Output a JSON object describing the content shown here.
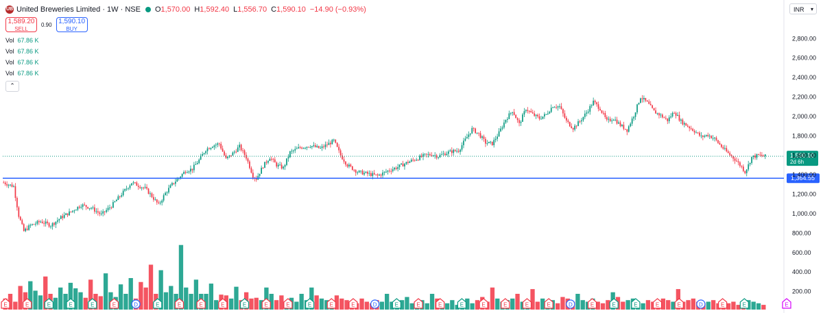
{
  "header": {
    "symbol": "United Breweries Limited · 1W · NSE",
    "logo": "UB",
    "ohlc": [
      {
        "key": "O",
        "value": "1,570.00"
      },
      {
        "key": "H",
        "value": "1,592.40"
      },
      {
        "key": "L",
        "value": "1,556.70"
      },
      {
        "key": "C",
        "value": "1,590.10"
      }
    ],
    "change": "−14.90 (−0.93%)"
  },
  "trade": {
    "sell_price": "1,589.20",
    "sell_label": "SELL",
    "spread": "0.90",
    "buy_price": "1,590.10",
    "buy_label": "BUY"
  },
  "volume_rows": [
    {
      "key": "Vol",
      "value": "67.86 K"
    },
    {
      "key": "Vol",
      "value": "67.86 K"
    },
    {
      "key": "Vol",
      "value": "67.86 K"
    },
    {
      "key": "Vol",
      "value": "67.86 K"
    }
  ],
  "collapse_icon": "chevron-up-icon",
  "currency": "INR",
  "colors": {
    "up": "#089981",
    "down": "#f23645",
    "line": "#2962ff",
    "last": "#089981"
  },
  "chart_data": {
    "type": "candlestick",
    "interval": "1W",
    "ylim": [
      120,
      2950
    ],
    "y_ticks": [
      "2,800.00",
      "2,600.00",
      "2,400.00",
      "2,200.00",
      "2,000.00",
      "1,800.00",
      "1,600.00",
      "1,400.00",
      "1,200.00",
      "1,000.00",
      "800.00",
      "600.00",
      "400.00",
      "200.00"
    ],
    "y_tick_values": [
      2800,
      2600,
      2400,
      2200,
      2000,
      1800,
      1600,
      1400,
      1200,
      1000,
      800,
      600,
      400,
      200
    ],
    "horizontal_line": {
      "value": 1364.55,
      "label": "1,364.55"
    },
    "last_price": {
      "value": 1590.1,
      "label": "1,590.10",
      "countdown": "2d 6h"
    },
    "close_path": [
      [
        0,
        1320
      ],
      [
        6,
        1280
      ],
      [
        9,
        980
      ],
      [
        12,
        820
      ],
      [
        16,
        880
      ],
      [
        22,
        920
      ],
      [
        28,
        880
      ],
      [
        34,
        960
      ],
      [
        40,
        1020
      ],
      [
        46,
        1090
      ],
      [
        52,
        1060
      ],
      [
        58,
        990
      ],
      [
        64,
        1080
      ],
      [
        70,
        1200
      ],
      [
        76,
        1320
      ],
      [
        80,
        1290
      ],
      [
        84,
        1260
      ],
      [
        88,
        1180
      ],
      [
        92,
        1090
      ],
      [
        96,
        1210
      ],
      [
        100,
        1300
      ],
      [
        104,
        1370
      ],
      [
        108,
        1440
      ],
      [
        112,
        1460
      ],
      [
        116,
        1550
      ],
      [
        120,
        1660
      ],
      [
        124,
        1700
      ],
      [
        128,
        1720
      ],
      [
        132,
        1560
      ],
      [
        136,
        1620
      ],
      [
        140,
        1690
      ],
      [
        144,
        1580
      ],
      [
        148,
        1390
      ],
      [
        150,
        1360
      ],
      [
        154,
        1490
      ],
      [
        158,
        1580
      ],
      [
        162,
        1500
      ],
      [
        166,
        1470
      ],
      [
        170,
        1630
      ],
      [
        176,
        1680
      ],
      [
        182,
        1700
      ],
      [
        188,
        1670
      ],
      [
        192,
        1710
      ],
      [
        196,
        1750
      ],
      [
        200,
        1600
      ],
      [
        204,
        1500
      ],
      [
        210,
        1430
      ],
      [
        216,
        1410
      ],
      [
        222,
        1390
      ],
      [
        228,
        1440
      ],
      [
        234,
        1480
      ],
      [
        240,
        1530
      ],
      [
        246,
        1570
      ],
      [
        250,
        1600
      ],
      [
        254,
        1610
      ],
      [
        258,
        1590
      ],
      [
        262,
        1620
      ],
      [
        266,
        1640
      ],
      [
        270,
        1650
      ],
      [
        274,
        1760
      ],
      [
        278,
        1870
      ],
      [
        282,
        1820
      ],
      [
        286,
        1730
      ],
      [
        290,
        1720
      ],
      [
        294,
        1830
      ],
      [
        298,
        1970
      ],
      [
        302,
        2060
      ],
      [
        306,
        1920
      ],
      [
        310,
        2080
      ],
      [
        314,
        2020
      ],
      [
        318,
        1980
      ],
      [
        322,
        2020
      ],
      [
        326,
        2110
      ],
      [
        330,
        2100
      ],
      [
        334,
        1950
      ],
      [
        338,
        1880
      ],
      [
        342,
        1950
      ],
      [
        346,
        2040
      ],
      [
        350,
        2150
      ],
      [
        354,
        2080
      ],
      [
        358,
        1950
      ],
      [
        362,
        1980
      ],
      [
        366,
        1910
      ],
      [
        370,
        1860
      ],
      [
        374,
        2010
      ],
      [
        378,
        2200
      ],
      [
        382,
        2140
      ],
      [
        386,
        2050
      ],
      [
        390,
        2010
      ],
      [
        394,
        1960
      ],
      [
        398,
        2050
      ],
      [
        402,
        1950
      ],
      [
        406,
        1900
      ],
      [
        410,
        1850
      ],
      [
        414,
        1790
      ],
      [
        418,
        1810
      ],
      [
        422,
        1770
      ],
      [
        426,
        1690
      ],
      [
        430,
        1620
      ],
      [
        434,
        1560
      ],
      [
        438,
        1480
      ],
      [
        440,
        1430
      ],
      [
        442,
        1500
      ],
      [
        444,
        1580
      ],
      [
        448,
        1600
      ],
      [
        452,
        1590
      ]
    ],
    "volume_heights": [
      0.14,
      0.2,
      0.1,
      0.3,
      0.22,
      0.36,
      0.24,
      0.18,
      0.42,
      0.2,
      0.15,
      0.28,
      0.2,
      0.34,
      0.27,
      0.22,
      0.15,
      0.38,
      0.2,
      0.17,
      0.46,
      0.22,
      0.16,
      0.32,
      0.2,
      0.4,
      0.14,
      0.35,
      0.28,
      0.57,
      0.2,
      0.5,
      0.22,
      0.3,
      0.2,
      0.82,
      0.28,
      0.2,
      0.38,
      0.2,
      0.2,
      0.33,
      0.12,
      0.19,
      0.18,
      0.14,
      0.29,
      0.12,
      0.22,
      0.14,
      0.15,
      0.12,
      0.28,
      0.2,
      0.12,
      0.18,
      0.1,
      0.15,
      0.1,
      0.2,
      0.12,
      0.28,
      0.18,
      0.14,
      0.12,
      0.1,
      0.18,
      0.14,
      0.12,
      0.1,
      0.08,
      0.14,
      0.1,
      0.08,
      0.12,
      0.1,
      0.2,
      0.1,
      0.08,
      0.12,
      0.16,
      0.08,
      0.1,
      0.12,
      0.08,
      0.2,
      0.14,
      0.1,
      0.08,
      0.12,
      0.06,
      0.1,
      0.14,
      0.08,
      0.12,
      0.16,
      0.1,
      0.28,
      0.14,
      0.1,
      0.12,
      0.14,
      0.2,
      0.1,
      0.12,
      0.26,
      0.1,
      0.14,
      0.1,
      0.12,
      0.08,
      0.16,
      0.14,
      0.1,
      0.2,
      0.12,
      0.1,
      0.14,
      0.1,
      0.08,
      0.12,
      0.22,
      0.16,
      0.1,
      0.12,
      0.14,
      0.1,
      0.08,
      0.12,
      0.1,
      0.08,
      0.14,
      0.12,
      0.1,
      0.26,
      0.1,
      0.12,
      0.14,
      0.1,
      0.08,
      0.1,
      0.12,
      0.08,
      0.06,
      0.08,
      0.1,
      0.06,
      0.08,
      0.12,
      0.1,
      0.08,
      0.06
    ],
    "events": [
      {
        "code": "E",
        "kind": "earnings-down"
      },
      {
        "code": "E",
        "kind": "earnings-down"
      },
      {
        "code": "E",
        "kind": "earnings-up"
      },
      {
        "code": "E",
        "kind": "earnings-up"
      },
      {
        "code": "E",
        "kind": "earnings-up"
      },
      {
        "code": "E",
        "kind": "earnings-down"
      },
      {
        "code": "D",
        "kind": "dividend"
      },
      {
        "code": "E",
        "kind": "earnings-up"
      },
      {
        "code": "E",
        "kind": "earnings-down"
      },
      {
        "code": "E",
        "kind": "earnings-down"
      },
      {
        "code": "E",
        "kind": "earnings-down"
      },
      {
        "code": "E",
        "kind": "earnings-up"
      },
      {
        "code": "E",
        "kind": "earnings-down"
      },
      {
        "code": "E",
        "kind": "earnings-down"
      },
      {
        "code": "E",
        "kind": "earnings-up"
      },
      {
        "code": "E",
        "kind": "earnings-down"
      },
      {
        "code": "E",
        "kind": "earnings-down"
      },
      {
        "code": "D",
        "kind": "dividend"
      },
      {
        "code": "E",
        "kind": "earnings-up"
      },
      {
        "code": "E",
        "kind": "earnings-down"
      },
      {
        "code": "E",
        "kind": "earnings-down"
      },
      {
        "code": "E",
        "kind": "earnings-up"
      },
      {
        "code": "E",
        "kind": "earnings-down"
      },
      {
        "code": "E",
        "kind": "earnings-down"
      },
      {
        "code": "E",
        "kind": "earnings-down"
      },
      {
        "code": "E",
        "kind": "earnings-down"
      },
      {
        "code": "D",
        "kind": "dividend"
      },
      {
        "code": "E",
        "kind": "earnings-down"
      },
      {
        "code": "E",
        "kind": "earnings-up"
      },
      {
        "code": "E",
        "kind": "earnings-up"
      },
      {
        "code": "E",
        "kind": "earnings-down"
      },
      {
        "code": "E",
        "kind": "earnings-down"
      },
      {
        "code": "D",
        "kind": "dividend"
      },
      {
        "code": "E",
        "kind": "earnings-down"
      },
      {
        "code": "E",
        "kind": "earnings-up"
      },
      {
        "code": "E",
        "kind": "future"
      }
    ]
  }
}
